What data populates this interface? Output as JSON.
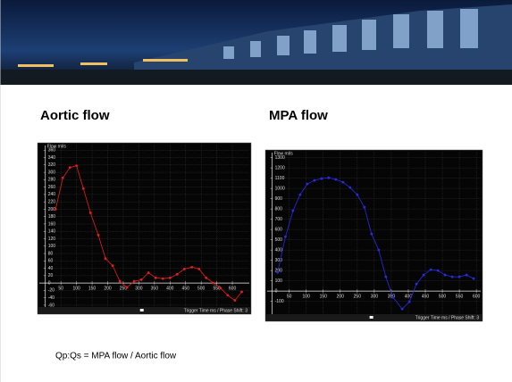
{
  "chart_data": [
    {
      "type": "line",
      "title": "Aortic flow",
      "y_label": "Flow ml/s",
      "x_label": "Trigger Time ms / Phase Shift: 3",
      "color": "#e81c1c",
      "grid": true,
      "x": [
        33,
        56,
        79,
        100,
        122,
        145,
        170,
        193,
        216,
        239,
        262,
        285,
        308,
        331,
        354,
        377,
        400,
        423,
        446,
        470,
        493,
        516,
        539,
        562,
        585,
        608,
        630
      ],
      "values": [
        200,
        285,
        313,
        318,
        256,
        190,
        130,
        66,
        47,
        5,
        -12,
        5,
        9,
        28,
        14,
        12,
        14,
        24,
        38,
        43,
        38,
        14,
        0,
        -14,
        -33,
        -47,
        -24
      ],
      "xlim": [
        -25,
        660
      ],
      "ylim": [
        -65,
        380
      ],
      "xticks": [
        50,
        100,
        150,
        200,
        250,
        300,
        350,
        400,
        450,
        500,
        550,
        600
      ],
      "yticks": [
        -60,
        -40,
        -20,
        0,
        20,
        40,
        60,
        80,
        100,
        120,
        140,
        160,
        180,
        200,
        220,
        240,
        260,
        280,
        300,
        320,
        340,
        360
      ]
    },
    {
      "type": "line",
      "title": "MPA flow",
      "y_label": "Flow ml/s",
      "x_label": "Trigger Time ms / Phase Shift: 3",
      "color": "#2a2ae8",
      "grid": true,
      "x": [
        16,
        39,
        61,
        82,
        103,
        124,
        145,
        166,
        187,
        208,
        229,
        250,
        271,
        292,
        313,
        334,
        355,
        382,
        403,
        424,
        445,
        466,
        487,
        508,
        529,
        550,
        571,
        592
      ],
      "values": [
        183,
        530,
        783,
        939,
        1043,
        1078,
        1096,
        1104,
        1087,
        1061,
        1009,
        939,
        817,
        557,
        400,
        139,
        -60,
        -174,
        -104,
        70,
        157,
        209,
        200,
        157,
        139,
        139,
        157,
        122
      ],
      "xlim": [
        -20,
        618
      ],
      "ylim": [
        -225,
        1375
      ],
      "xticks": [
        50,
        100,
        150,
        200,
        250,
        300,
        350,
        400,
        450,
        500,
        550,
        600
      ],
      "yticks": [
        -100,
        0,
        100,
        200,
        300,
        400,
        500,
        600,
        700,
        800,
        900,
        1000,
        1100,
        1200,
        1300
      ]
    }
  ],
  "caption": "Qp:Qs = MPA flow / Aortic flow"
}
